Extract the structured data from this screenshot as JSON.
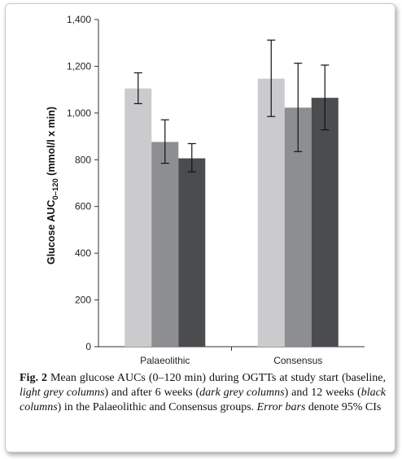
{
  "chart_data": {
    "type": "bar",
    "categories": [
      "Palaeolithic",
      "Consensus"
    ],
    "series": [
      {
        "color": "#cbcbcd",
        "values": [
          1105,
          1147
        ],
        "ci_low": [
          1040,
          985
        ],
        "ci_high": [
          1172,
          1312
        ]
      },
      {
        "color": "#8d8e90",
        "values": [
          876,
          1023
        ],
        "ci_low": [
          785,
          835
        ],
        "ci_high": [
          971,
          1213
        ]
      },
      {
        "color": "#4b4c4e",
        "values": [
          806,
          1065
        ],
        "ci_low": [
          748,
          928
        ],
        "ci_high": [
          869,
          1205
        ]
      }
    ],
    "ylabel_main": "Glucose AUC",
    "ylabel_sub": "0–120",
    "ylabel_units": " (mmol/l x min)",
    "ylim": [
      0,
      1400
    ],
    "yticks": [
      0,
      200,
      400,
      600,
      800,
      1000,
      1200,
      1400
    ],
    "ytick_labels": [
      "0",
      "200",
      "400",
      "600",
      "800",
      "1,000",
      "1,200",
      "1,400"
    ],
    "grid": false
  },
  "caption": {
    "label": "Fig. 2",
    "parts": [
      {
        "text": "  Mean glucose AUCs (0–120 min) during OGTTs at study start (baseline, ",
        "italic": false
      },
      {
        "text": "light grey columns",
        "italic": true
      },
      {
        "text": ") and after 6 weeks (",
        "italic": false
      },
      {
        "text": "dark grey columns",
        "italic": true
      },
      {
        "text": ") and 12 weeks (",
        "italic": false
      },
      {
        "text": "black columns",
        "italic": true
      },
      {
        "text": ") in the Palaeolithic and Consensus groups. ",
        "italic": false
      },
      {
        "text": "Error bars",
        "italic": true
      },
      {
        "text": " denote 95% CIs",
        "italic": false
      }
    ]
  }
}
